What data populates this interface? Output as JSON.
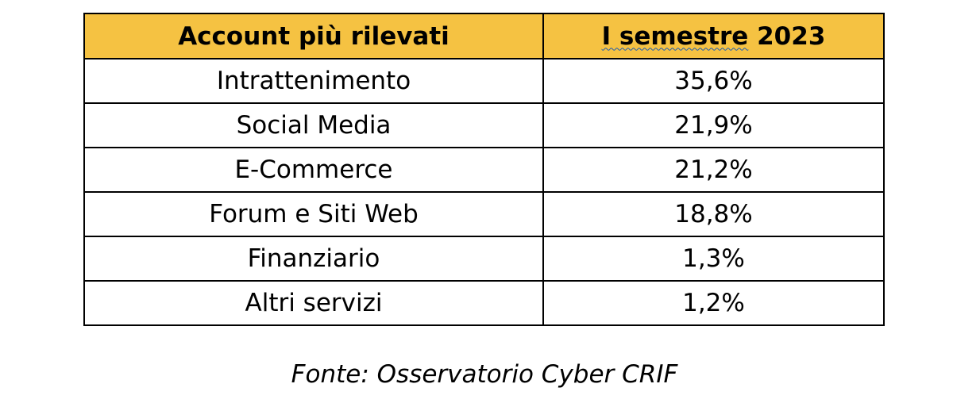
{
  "colors": {
    "header_bg": "#f5c242",
    "border": "#000000",
    "spellcheck_underline": "#1c5bb3"
  },
  "table": {
    "headers": {
      "col1": "Account più rilevati",
      "col2_underlined": "I semestre",
      "col2_rest": " 2023"
    },
    "rows": [
      {
        "label": "Intrattenimento",
        "value": "35,6%"
      },
      {
        "label": "Social Media",
        "value": "21,9%"
      },
      {
        "label": "E-Commerce",
        "value": "21,2%"
      },
      {
        "label": "Forum e Siti Web",
        "value": "18,8%"
      },
      {
        "label": "Finanziario",
        "value": "1,3%"
      },
      {
        "label": "Altri servizi",
        "value": "1,2%"
      }
    ]
  },
  "source": "Fonte: Osservatorio Cyber CRIF"
}
